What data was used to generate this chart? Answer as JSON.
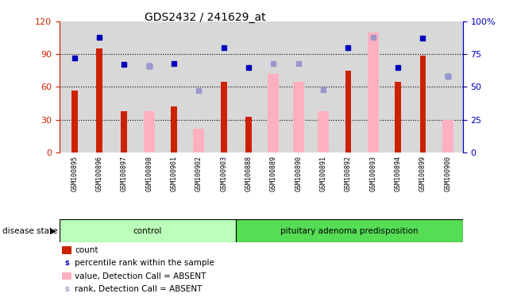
{
  "title": "GDS2432 / 241629_at",
  "samples": [
    "GSM100895",
    "GSM100896",
    "GSM100897",
    "GSM100898",
    "GSM100901",
    "GSM100902",
    "GSM100903",
    "GSM100888",
    "GSM100889",
    "GSM100890",
    "GSM100891",
    "GSM100892",
    "GSM100893",
    "GSM100894",
    "GSM100899",
    "GSM100900"
  ],
  "control_count": 7,
  "groups": [
    "control",
    "pituitary adenoma predisposition"
  ],
  "red_bars": [
    57,
    95,
    38,
    null,
    42,
    null,
    65,
    33,
    null,
    null,
    null,
    75,
    null,
    65,
    89,
    null
  ],
  "pink_bars": [
    null,
    null,
    null,
    38,
    null,
    22,
    null,
    null,
    72,
    65,
    38,
    null,
    110,
    null,
    null,
    30
  ],
  "blue_squares": [
    72,
    88,
    67,
    66,
    68,
    null,
    80,
    65,
    null,
    null,
    null,
    80,
    null,
    65,
    87,
    58
  ],
  "lavender_squares": [
    null,
    null,
    null,
    66,
    null,
    47,
    null,
    null,
    68,
    68,
    48,
    null,
    88,
    null,
    null,
    58
  ],
  "left_ylim": [
    0,
    120
  ],
  "right_ylim": [
    0,
    100
  ],
  "left_yticks": [
    0,
    30,
    60,
    90,
    120
  ],
  "right_yticks": [
    0,
    25,
    50,
    75,
    100
  ],
  "right_yticklabels": [
    "0",
    "25",
    "50",
    "75",
    "100%"
  ],
  "plot_bg": "#d8d8d8",
  "xtick_bg": "#c8c8c8",
  "control_bg": "#bbffbb",
  "disease_bg": "#55dd55",
  "red_color": "#cc2200",
  "pink_color": "#ffb0c0",
  "blue_color": "#0000bb",
  "lavender_color": "#9999cc",
  "legend_items": [
    {
      "label": "count",
      "color": "#cc2200",
      "type": "bar"
    },
    {
      "label": "percentile rank within the sample",
      "color": "#0000bb",
      "type": "square"
    },
    {
      "label": "value, Detection Call = ABSENT",
      "color": "#ffb0c0",
      "type": "bar"
    },
    {
      "label": "rank, Detection Call = ABSENT",
      "color": "#9999cc",
      "type": "square"
    }
  ]
}
